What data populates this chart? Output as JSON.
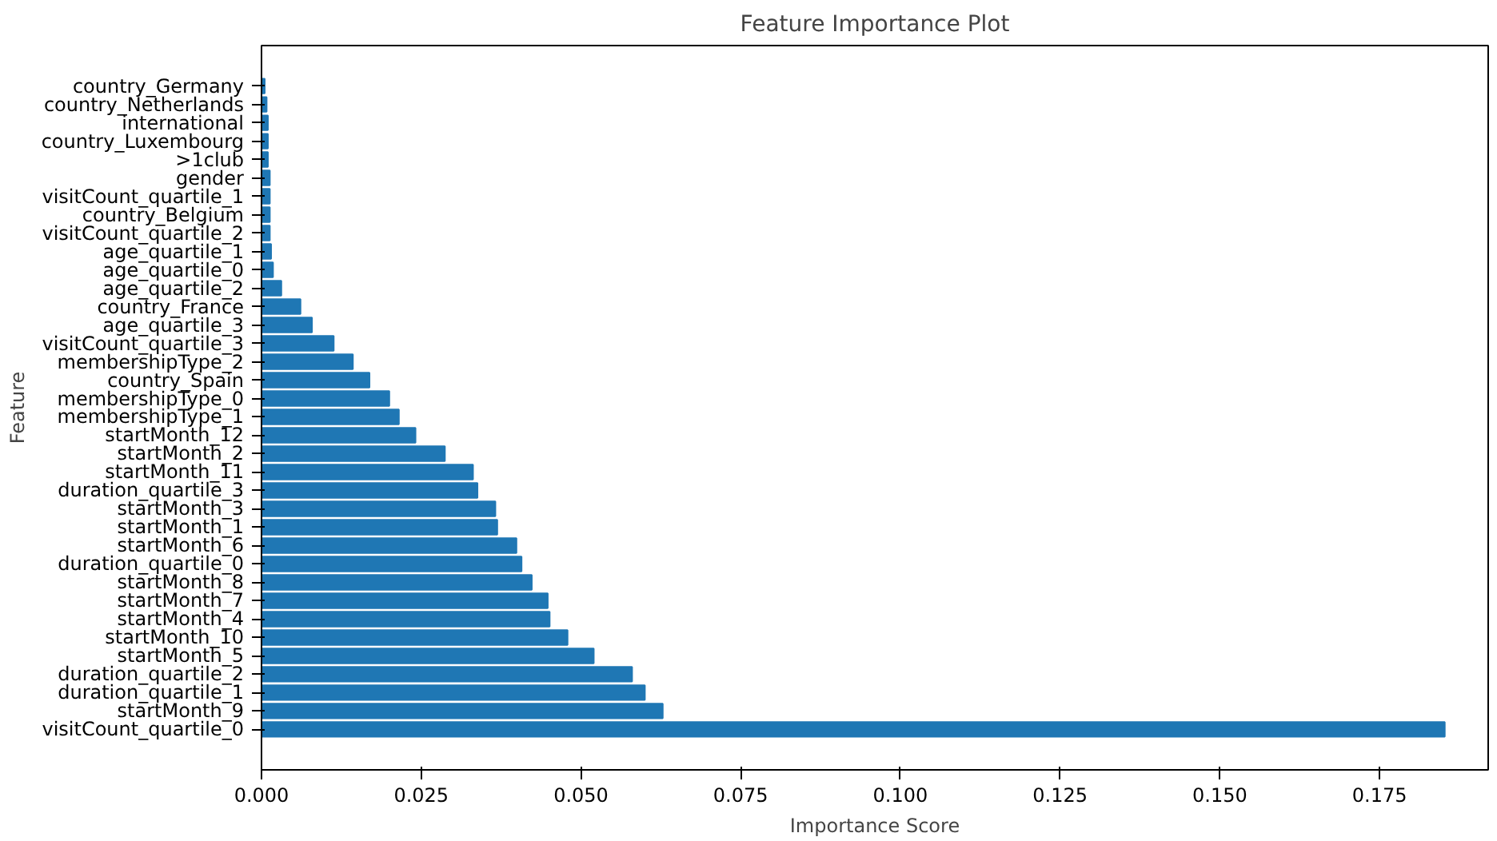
{
  "chart_data": {
    "type": "bar",
    "orientation": "horizontal",
    "title": "Feature Importance Plot",
    "xlabel": "Importance Score",
    "ylabel": "Feature",
    "categories": [
      "country_Germany",
      "country_Netherlands",
      "international",
      "country_Luxembourg",
      ">1club",
      "gender",
      "visitCount_quartile_1",
      "country_Belgium",
      "visitCount_quartile_2",
      "age_quartile_1",
      "age_quartile_0",
      "age_quartile_2",
      "country_France",
      "age_quartile_3",
      "visitCount_quartile_3",
      "membershipType_2",
      "country_Spain",
      "membershipType_0",
      "membershipType_1",
      "startMonth_12",
      "startMonth_2",
      "startMonth_11",
      "duration_quartile_3",
      "startMonth_3",
      "startMonth_1",
      "startMonth_6",
      "duration_quartile_0",
      "startMonth_8",
      "startMonth_7",
      "startMonth_4",
      "startMonth_10",
      "startMonth_5",
      "duration_quartile_2",
      "duration_quartile_1",
      "startMonth_9",
      "visitCount_quartile_0"
    ],
    "values": [
      0.0005,
      0.0008,
      0.001,
      0.001,
      0.001,
      0.0013,
      0.0013,
      0.0013,
      0.0013,
      0.0015,
      0.0018,
      0.0031,
      0.0061,
      0.0079,
      0.0113,
      0.0143,
      0.0169,
      0.02,
      0.0215,
      0.0241,
      0.0287,
      0.0331,
      0.0338,
      0.0366,
      0.0369,
      0.0399,
      0.0407,
      0.0423,
      0.0448,
      0.0451,
      0.0479,
      0.052,
      0.058,
      0.06,
      0.0628,
      0.1852
    ],
    "color": "#1f77b4",
    "xlim": [
      0,
      0.192
    ],
    "xticks": [
      {
        "value": 0,
        "label": "0.000"
      },
      {
        "value": 0.025,
        "label": "0.025"
      },
      {
        "value": 0.05,
        "label": "0.050"
      },
      {
        "value": 0.075,
        "label": "0.075"
      },
      {
        "value": 0.1,
        "label": "0.100"
      },
      {
        "value": 0.125,
        "label": "0.125"
      },
      {
        "value": 0.15,
        "label": "0.150"
      },
      {
        "value": 0.175,
        "label": "0.175"
      }
    ],
    "grid": false
  }
}
